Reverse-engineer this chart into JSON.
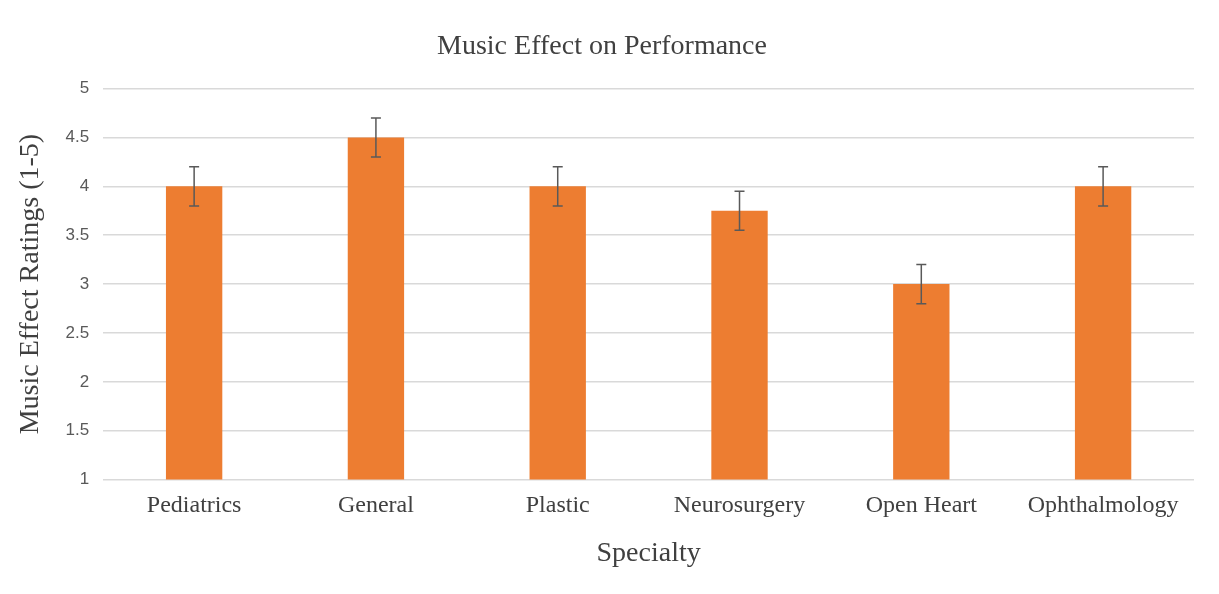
{
  "chart_data": {
    "type": "bar",
    "title": "Music Effect on Performance",
    "xlabel": "Specialty",
    "ylabel": "Music Effect Ratings (1-5)",
    "categories": [
      "Pediatrics",
      "General",
      "Plastic",
      "Neurosurgery",
      "Open Heart",
      "Ophthalmology"
    ],
    "values": [
      4,
      4.5,
      4,
      3.75,
      3,
      4
    ],
    "errors": [
      0.2,
      0.2,
      0.2,
      0.2,
      0.2,
      0.2
    ],
    "color": "#ed7d31",
    "ylim": [
      1,
      5
    ],
    "yticks": [
      1,
      1.5,
      2,
      2.5,
      3,
      3.5,
      4,
      4.5,
      5
    ],
    "grid": "y",
    "legend": false
  }
}
